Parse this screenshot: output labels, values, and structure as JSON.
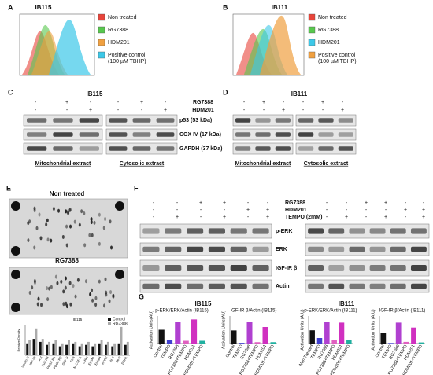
{
  "figure": {
    "A": {
      "label": "A",
      "title": "IB115",
      "legend": [
        "Non treated",
        "RG7388",
        "HDM201",
        "Positive control (100 µM TBHP)"
      ],
      "colors": [
        "#e8443a",
        "#57c84d",
        "#f0a040",
        "#3cc8e8"
      ]
    },
    "B": {
      "label": "B",
      "title": "IB111",
      "legend": [
        "Non treated",
        "RG7388",
        "HDM201",
        "Positive control (100 µM TBHP)"
      ],
      "colors": [
        "#e8443a",
        "#57c84d",
        "#3cc8e8",
        "#f0a040"
      ]
    },
    "C": {
      "label": "C",
      "title": "IB115",
      "treatments": [
        {
          "name": "RG7388",
          "signs": [
            "-",
            "+",
            "-",
            "-",
            "+",
            "-"
          ]
        },
        {
          "name": "HDM201",
          "signs": [
            "-",
            "-",
            "+",
            "-",
            "-",
            "+"
          ]
        }
      ],
      "proteins": [
        "p53 (53 kDa)",
        "COX IV (17 kDa)",
        "GAPDH (37 kDa)"
      ],
      "extracts": [
        "Mitochondrial extract",
        "Cytosolic extract"
      ]
    },
    "D": {
      "label": "D",
      "title": "IB111",
      "signs": [
        [
          "-",
          "+",
          "-",
          "-",
          "+",
          "-"
        ],
        [
          "-",
          "-",
          "+",
          "-",
          "-",
          "+"
        ]
      ],
      "extracts": [
        "Mitochondrial extract",
        "Cytosolic extract"
      ]
    },
    "E": {
      "label": "E",
      "images": [
        "Non treated",
        "RG7388"
      ]
    },
    "F": {
      "label": "F",
      "treatments": [
        {
          "name": "RG7388",
          "signs": [
            "-",
            "-",
            "+",
            "+",
            "-",
            "-",
            "-",
            "-",
            "+",
            "+",
            "-",
            "-"
          ]
        },
        {
          "name": "HDM201",
          "signs": [
            "-",
            "-",
            "-",
            "-",
            "+",
            "+",
            "-",
            "-",
            "-",
            "-",
            "+",
            "+"
          ]
        },
        {
          "name": "TEMPO (2mM)",
          "signs": [
            "-",
            "+",
            "-",
            "+",
            "-",
            "+",
            "-",
            "+",
            "-",
            "+",
            "-",
            "+"
          ]
        }
      ],
      "proteins": [
        "p-ERK",
        "ERK",
        "IGF-IR β",
        "Actin"
      ]
    },
    "G": {
      "label": "G",
      "titles": [
        "IB115",
        "IB111"
      ]
    }
  },
  "chart_data": [
    {
      "type": "bar",
      "title": "IB115",
      "ylabel": "Relative Density",
      "categories": [
        "Insulin R",
        "IGF-IR",
        "Axl",
        "FGF R3",
        "PDGF Rα",
        "PDGF Rβ",
        "SCF R",
        "Flt-3",
        "M-CSF R",
        "c-Ret",
        "EphA1",
        "EphB4",
        "ROR2",
        "ALK",
        "Tie-2",
        "DDR1"
      ],
      "series": [
        {
          "name": "Control",
          "color": "#111111",
          "values": [
            0.4,
            0.55,
            0.45,
            0.35,
            0.4,
            0.3,
            0.35,
            0.4,
            0.3,
            0.35,
            0.3,
            0.4,
            0.35,
            0.3,
            0.4,
            0.35
          ]
        },
        {
          "name": "RG7388",
          "color": "#aaaaaa",
          "values": [
            0.5,
            0.9,
            0.55,
            0.45,
            0.5,
            0.4,
            0.5,
            0.45,
            0.4,
            0.45,
            0.4,
            0.5,
            0.45,
            0.4,
            0.95,
            0.45
          ]
        }
      ],
      "ylim": [
        0,
        1
      ]
    },
    {
      "type": "bar",
      "title": "p-ERK/ERK/Actin (IB115)",
      "ylabel": "Activation Units(AU)",
      "categories": [
        "Control",
        "TEMPO",
        "RG7388",
        "RG7388+TEMPO",
        "HDM201",
        "HDM201+TEMPO"
      ],
      "colors": [
        "#111111",
        "#4040d0",
        "#b040d0",
        "#e060c0",
        "#d030c0",
        "#20b0a0"
      ],
      "values": [
        1.0,
        0.25,
        1.55,
        0.2,
        1.75,
        0.2
      ],
      "ylim": [
        0,
        2
      ]
    },
    {
      "type": "bar",
      "title": "IGF-IR β/Actin (IB115)",
      "ylabel": "Activation Units(AU)",
      "categories": [
        "Control",
        "TEMPO",
        "RG7388",
        "RG7388+TEMPO",
        "HDM201",
        "HDM201+TEMPO"
      ],
      "colors": [
        "#111111",
        "#4040d0",
        "#b040d0",
        "#e060c0",
        "#d030c0",
        "#20b0a0"
      ],
      "values": [
        0.95,
        0.05,
        1.6,
        0.1,
        1.2,
        0.1
      ],
      "ylim": [
        0,
        2
      ]
    },
    {
      "type": "bar",
      "title": "p-ERK/ERK/Actin (IB111)",
      "ylabel": "Activation Units (A.U)",
      "categories": [
        "Non Treated",
        "TEMPO",
        "RG7388",
        "RG7388+TEMPO",
        "HDM201",
        "HDM201+TEMPO"
      ],
      "colors": [
        "#111111",
        "#4040d0",
        "#b040d0",
        "#e060c0",
        "#d030c0",
        "#20b0a0"
      ],
      "values": [
        1.2,
        0.5,
        2.0,
        0.3,
        1.9,
        0.3
      ],
      "ylim": [
        0,
        2.5
      ]
    },
    {
      "type": "bar",
      "title": "IGF-IR β/Actin (IB111)",
      "ylabel": "Activation Units (A.U)",
      "categories": [
        "Control",
        "TEMPO",
        "RG7388",
        "RG7388+TEMPO",
        "HDM201",
        "HDM201+TEMPO"
      ],
      "colors": [
        "#111111",
        "#4040d0",
        "#b040d0",
        "#e060c0",
        "#d030c0",
        "#20b0a0"
      ],
      "values": [
        1.0,
        0.05,
        1.9,
        0.15,
        1.45,
        0.1
      ],
      "ylim": [
        0,
        2.5
      ]
    }
  ]
}
